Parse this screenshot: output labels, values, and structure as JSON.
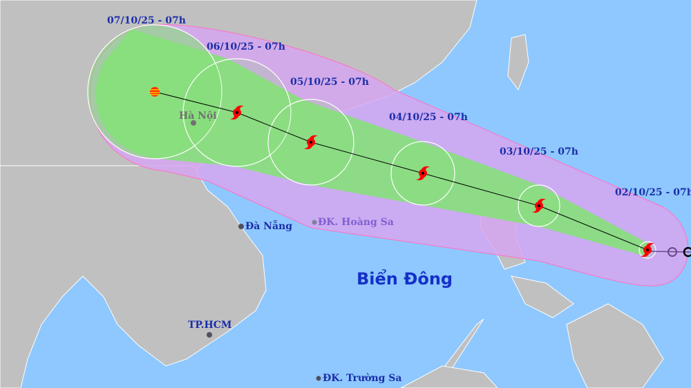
{
  "map": {
    "sea_label": "Biển Đông",
    "places": {
      "hanoi": "Hà Nội",
      "danang": "Đà Nẵng",
      "hoangsa": "ĐK. Hoàng Sa",
      "hcm": "TP.HCM",
      "truongsa": "ĐK. Trường Sa"
    },
    "forecast_points": [
      {
        "label": "07/10/25 - 07h",
        "icon": "storm-weakening-icon"
      },
      {
        "label": "06/10/25 - 07h",
        "icon": "typhoon-icon"
      },
      {
        "label": "05/10/25 - 07h",
        "icon": "typhoon-icon"
      },
      {
        "label": "04/10/25 - 07h",
        "icon": "typhoon-icon"
      },
      {
        "label": "03/10/25 - 07h",
        "icon": "typhoon-icon"
      },
      {
        "label": "02/10/25 - 07h",
        "icon": "typhoon-icon"
      }
    ],
    "colors": {
      "sea": "#8ec8ff",
      "land": "#c0c0c0",
      "risk_zone": "#d6a6f0",
      "strong_wind_zone": "#86e07a",
      "storm_icon": "#ff0000",
      "label": "#1b2ea8"
    }
  }
}
